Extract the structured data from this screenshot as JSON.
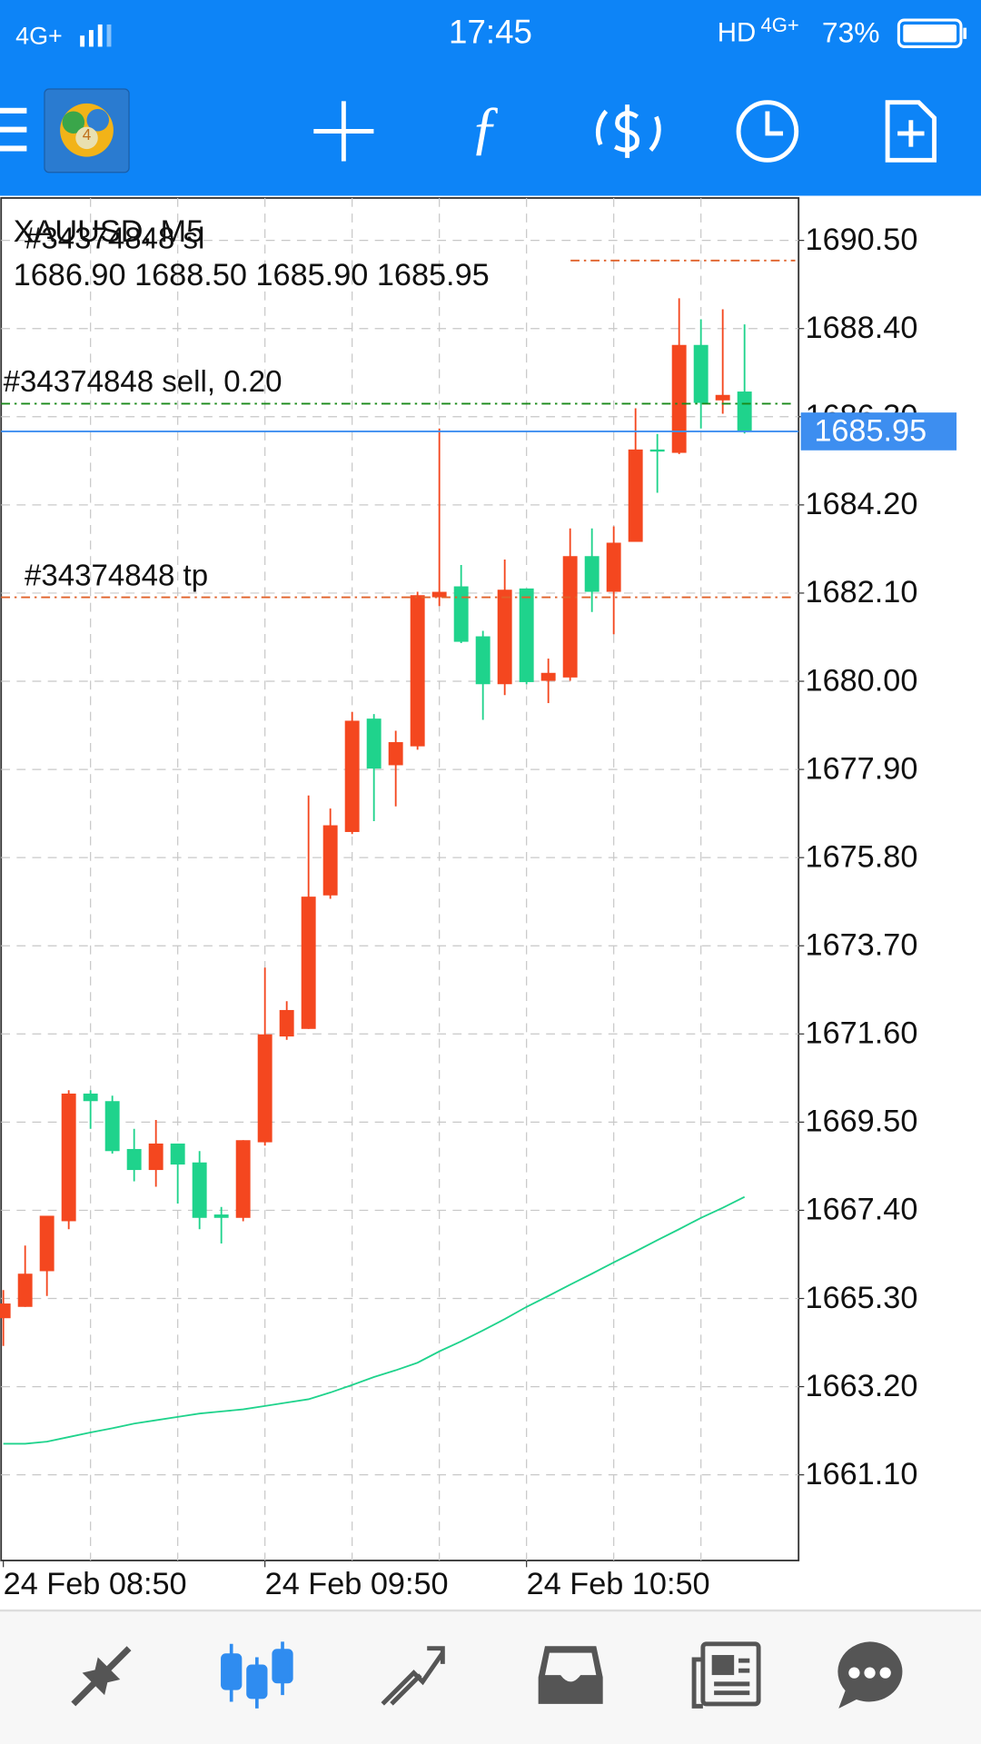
{
  "status_bar": {
    "network": "4G+",
    "time": "17:45",
    "hd": "HD",
    "network2": "4G+",
    "battery": "73%"
  },
  "chart_data": {
    "type": "candlestick",
    "title": "XAUUSD, M5",
    "ohlc_text": "1686.90 1688.50 1685.90 1685.95",
    "categories": [
      "24 Feb 08:50",
      null,
      null,
      null,
      null,
      null,
      null,
      null,
      null,
      null,
      null,
      null,
      "24 Feb 09:50",
      null,
      null,
      null,
      null,
      null,
      null,
      null,
      null,
      null,
      null,
      null,
      "24 Feb 10:50",
      null,
      null,
      null,
      null,
      null,
      null,
      null,
      null,
      null,
      null
    ],
    "open": [
      1664.83,
      1665.1,
      1665.95,
      1667.14,
      1670.18,
      1670.0,
      1668.86,
      1668.36,
      1668.99,
      1668.54,
      1667.3,
      1667.22,
      1669.02,
      1671.54,
      1671.72,
      1674.9,
      1676.41,
      1679.11,
      1678.0,
      1678.45,
      1682.0,
      1682.26,
      1681.07,
      1679.93,
      1682.21,
      1680.01,
      1680.09,
      1682.98,
      1682.13,
      1683.32,
      1685.52,
      1685.44,
      1688.01,
      1686.69,
      1686.9
    ],
    "high": [
      1665.5,
      1666.56,
      1667.27,
      1670.26,
      1670.26,
      1670.13,
      1669.34,
      1669.55,
      1668.99,
      1668.81,
      1667.48,
      1669.07,
      1673.18,
      1672.38,
      1677.28,
      1676.97,
      1679.27,
      1679.22,
      1678.82,
      1682.13,
      1686.02,
      1682.77,
      1681.2,
      1682.9,
      1682.21,
      1680.54,
      1683.64,
      1683.64,
      1683.69,
      1686.5,
      1685.89,
      1689.12,
      1688.62,
      1688.86,
      1688.5
    ],
    "low": [
      1664.17,
      1665.1,
      1665.36,
      1666.95,
      1669.34,
      1668.75,
      1668.09,
      1667.96,
      1667.56,
      1666.95,
      1666.61,
      1667.14,
      1668.94,
      1671.46,
      1671.72,
      1674.82,
      1676.36,
      1676.67,
      1677.02,
      1678.37,
      1681.79,
      1680.91,
      1679.08,
      1679.67,
      1679.93,
      1679.48,
      1680.01,
      1681.65,
      1681.12,
      1683.32,
      1684.49,
      1685.41,
      1686.02,
      1686.37,
      1685.9
    ],
    "close": [
      1665.18,
      1665.89,
      1667.27,
      1670.18,
      1670.0,
      1668.81,
      1668.36,
      1668.99,
      1668.49,
      1667.22,
      1667.22,
      1669.07,
      1671.59,
      1672.17,
      1674.87,
      1676.57,
      1679.06,
      1677.92,
      1678.55,
      1682.05,
      1682.13,
      1680.94,
      1679.93,
      1682.18,
      1679.98,
      1680.2,
      1682.98,
      1682.13,
      1683.3,
      1685.52,
      1685.47,
      1688.01,
      1686.63,
      1686.82,
      1685.95
    ],
    "up_color": "#f4471f",
    "down_color": "#1fd38c",
    "ma": {
      "color": "#1fd38c",
      "values": [
        1661.84,
        1661.84,
        1661.89,
        1662.0,
        1662.11,
        1662.21,
        1662.32,
        1662.4,
        1662.48,
        1662.56,
        1662.61,
        1662.66,
        1662.74,
        1662.82,
        1662.9,
        1663.06,
        1663.24,
        1663.43,
        1663.59,
        1663.77,
        1664.04,
        1664.28,
        1664.54,
        1664.81,
        1665.1,
        1665.36,
        1665.63,
        1665.89,
        1666.16,
        1666.42,
        1666.69,
        1666.95,
        1667.22,
        1667.46,
        1667.72
      ]
    },
    "levels": [
      {
        "label": "#34374848 sl",
        "value": 1690.02,
        "color": "#e0622a"
      },
      {
        "label": "#34374848 sell, 0.20",
        "value": 1686.61,
        "color": "#1a8a1a"
      },
      {
        "label": "#34374848 tp",
        "value": 1682.0,
        "color": "#e0622a"
      }
    ],
    "bid": {
      "value": 1685.95,
      "value_label": "1685.95",
      "color": "#3d8ef0"
    },
    "ylim": [
      1659.06,
      1691.51
    ],
    "yticks": [
      {
        "value": 1690.5,
        "label": "1690.50"
      },
      {
        "value": 1688.4,
        "label": "1688.40"
      },
      {
        "value": 1686.3,
        "label": "1686.30"
      },
      {
        "value": 1684.2,
        "label": "1684.20"
      },
      {
        "value": 1682.1,
        "label": "1682.10"
      },
      {
        "value": 1680,
        "label": "1680.00"
      },
      {
        "value": 1677.9,
        "label": "1677.90"
      },
      {
        "value": 1675.8,
        "label": "1675.80"
      },
      {
        "value": 1673.7,
        "label": "1673.70"
      },
      {
        "value": 1671.6,
        "label": "1671.60"
      },
      {
        "value": 1669.5,
        "label": "1669.50"
      },
      {
        "value": 1667.4,
        "label": "1667.40"
      },
      {
        "value": 1665.3,
        "label": "1665.30"
      },
      {
        "value": 1663.2,
        "label": "1663.20"
      },
      {
        "value": 1661.1,
        "label": "1661.10"
      }
    ],
    "grid": true
  }
}
